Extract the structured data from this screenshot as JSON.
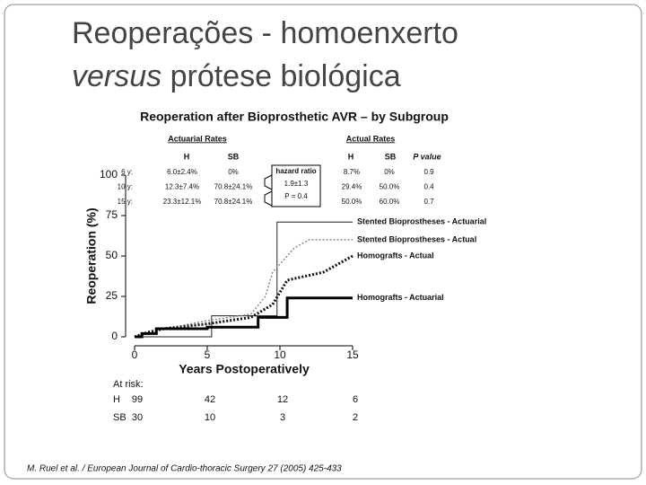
{
  "slide": {
    "title_line1": "Reoperações -  homoenxerto",
    "title_italic": "versus",
    "title_rest": " prótese biológica",
    "citation": "M. Ruel et al. / European Journal of Cardio-thoracic Surgery 27 (2005) 425-433"
  },
  "table": {
    "actuarial_header": "Actuarial Rates",
    "actual_header": "Actual Rates",
    "columns": [
      "H",
      "SB",
      "H",
      "SB",
      "P value"
    ],
    "rows": [
      [
        "6 y:",
        "6.0±2.4%",
        "0%",
        "8.7%",
        "0%",
        "0.9"
      ],
      [
        "10 y:",
        "12.3±7.4%",
        "70.8±24.1%",
        "29.4%",
        "50.0%",
        "0.4"
      ],
      [
        "15 y:",
        "23.3±12.1%",
        "70.8±24.1%",
        "50.0%",
        "60.0%",
        "0.7"
      ]
    ],
    "hazard": [
      "hazard ratio",
      "1.9±1.3",
      "P = 0.4"
    ]
  },
  "at_risk": {
    "label": "At risk:",
    "rows": [
      {
        "name": "H",
        "values": [
          99,
          42,
          12,
          6
        ]
      },
      {
        "name": "SB",
        "values": [
          30,
          10,
          3,
          2
        ]
      }
    ]
  },
  "chart_data": {
    "type": "line",
    "title": "Reoperation after Bioprosthetic AVR – by Subgroup",
    "x_label": "Years Postoperatively",
    "y_label": "Reoperation (%)",
    "xlim": [
      0,
      15
    ],
    "xticks": [
      0,
      5,
      10,
      15
    ],
    "ylim": [
      0,
      100
    ],
    "yticks": [
      0,
      25,
      50,
      75,
      100
    ],
    "series": [
      {
        "name": "Stented Bioprostheses - Actuarial",
        "color": "#222222",
        "line_style": "solid",
        "line_width": 1,
        "x": [
          0,
          5.3,
          5.3,
          9.8,
          9.8,
          15
        ],
        "values": [
          0,
          0,
          13,
          13,
          71,
          71
        ]
      },
      {
        "name": "Stented Bioprostheses - Actual",
        "color": "#888888",
        "line_style": "dotted",
        "line_width": 1.5,
        "x": [
          0,
          1,
          5,
          8,
          9,
          9.5,
          10,
          11,
          12,
          15
        ],
        "values": [
          0,
          3,
          10,
          14,
          25,
          40,
          45,
          55,
          60,
          60
        ]
      },
      {
        "name": "Homografts - Actual",
        "color": "#111111",
        "line_style": "dotted",
        "line_width": 3,
        "x": [
          0,
          1,
          2,
          5,
          8,
          9.5,
          10.5,
          12,
          13,
          14,
          15
        ],
        "values": [
          0,
          3,
          5,
          8,
          12,
          20,
          35,
          38,
          40,
          45,
          50
        ]
      },
      {
        "name": "Homografts - Actuarial",
        "color": "#000000",
        "line_style": "solid",
        "line_width": 3,
        "x": [
          0,
          0.5,
          0.5,
          1.5,
          1.5,
          5,
          5,
          8.5,
          8.5,
          10.5,
          10.5,
          15
        ],
        "values": [
          0,
          0,
          2,
          2,
          5,
          5,
          6,
          6,
          12,
          12,
          24,
          24
        ]
      }
    ]
  }
}
